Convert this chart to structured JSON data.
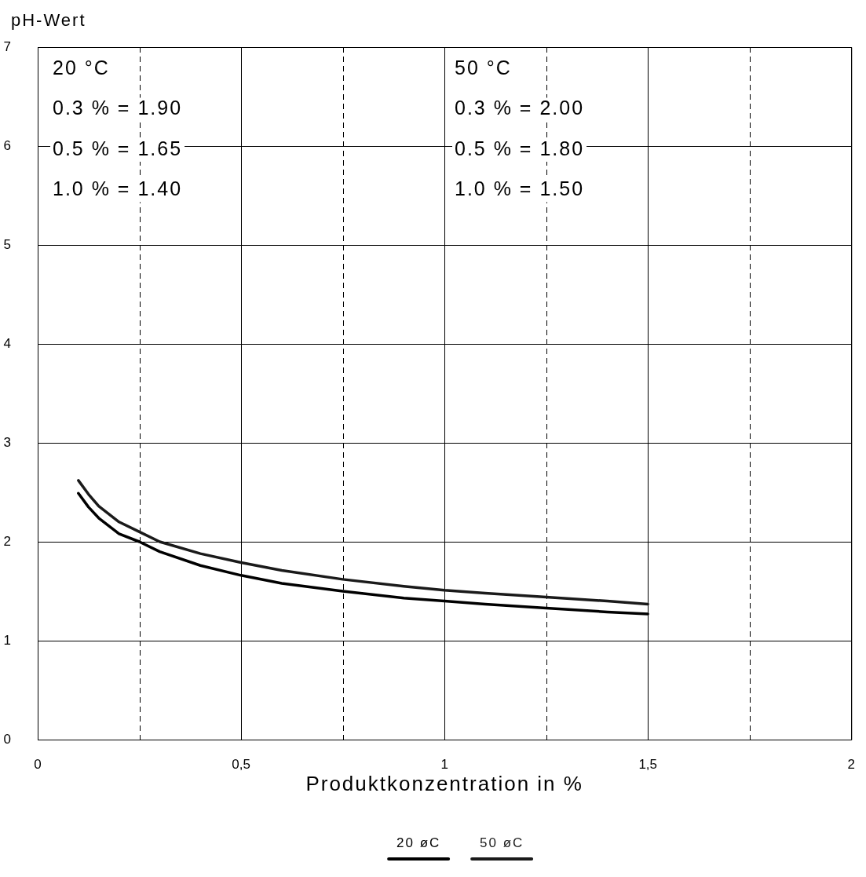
{
  "chart_data": {
    "type": "line",
    "xlabel": "Produktkonzentration in %",
    "ylabel": "pH-Wert",
    "annotations": [
      "20 °C",
      "0.3 % = 1.90",
      "0.5 % = 1.65",
      "1.0 % = 1.40",
      "50 °C",
      "0.3 % = 2.00",
      "0.5 % = 1.80",
      "1.0 % = 1.50"
    ],
    "series": [
      {
        "name": "20 øC",
        "color": "#000000",
        "x": [
          0.1,
          0.125,
          0.15,
          0.2,
          0.25,
          0.3,
          0.4,
          0.5,
          0.6,
          0.75,
          0.9,
          1.0,
          1.1,
          1.25,
          1.4,
          1.5
        ],
        "values": [
          2.49,
          2.35,
          2.24,
          2.08,
          2.0,
          1.9,
          1.76,
          1.66,
          1.58,
          1.5,
          1.43,
          1.4,
          1.37,
          1.33,
          1.29,
          1.27
        ]
      },
      {
        "name": "50 øC",
        "color": "#1a1a1a",
        "x": [
          0.1,
          0.125,
          0.15,
          0.2,
          0.25,
          0.3,
          0.4,
          0.5,
          0.6,
          0.75,
          0.9,
          1.0,
          1.1,
          1.25,
          1.4,
          1.5
        ],
        "values": [
          2.62,
          2.48,
          2.36,
          2.2,
          2.1,
          2.0,
          1.88,
          1.79,
          1.71,
          1.62,
          1.55,
          1.51,
          1.48,
          1.44,
          1.4,
          1.37
        ]
      }
    ],
    "xlim": [
      0,
      2
    ],
    "xticks": [
      0,
      {
        "value": 0.25,
        "label": null
      },
      {
        "value": 0.5,
        "label": "0,5"
      },
      {
        "value": 0.75,
        "label": null
      },
      1,
      {
        "value": 1.25,
        "label": null
      },
      {
        "value": 1.5,
        "label": "1,5"
      },
      {
        "value": 1.75,
        "label": null
      },
      2
    ],
    "ylim": [
      0,
      7
    ],
    "yticks": [
      0,
      1,
      2,
      3,
      4,
      5,
      6,
      7
    ],
    "grid": true,
    "legend": "bottom",
    "marker": "none",
    "line_style": "solid"
  }
}
